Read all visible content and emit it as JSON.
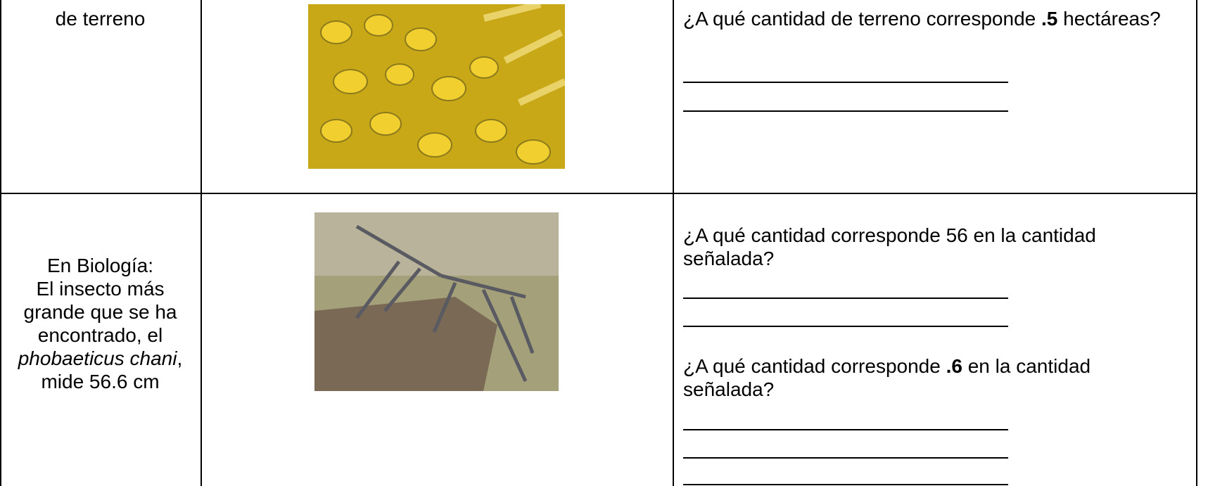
{
  "table": {
    "rows": [
      {
        "label": [
          "de terreno"
        ],
        "questions": [
          [
            "¿A qué cantidad de terreno corresponde ",
            ".5",
            " hectáreas?"
          ]
        ]
      },
      {
        "label": [
          "En Biología:",
          "El insecto más grande que se ha encontrado, el ",
          "phobaeticus chani",
          ", mide 56.6 cm"
        ],
        "questions": [
          [
            "¿A qué cantidad corresponde 56 en la cantidad señalada?"
          ],
          [
            "¿A qué cantidad corresponde ",
            ".6",
            " en la cantidad señalada?"
          ]
        ]
      }
    ]
  }
}
